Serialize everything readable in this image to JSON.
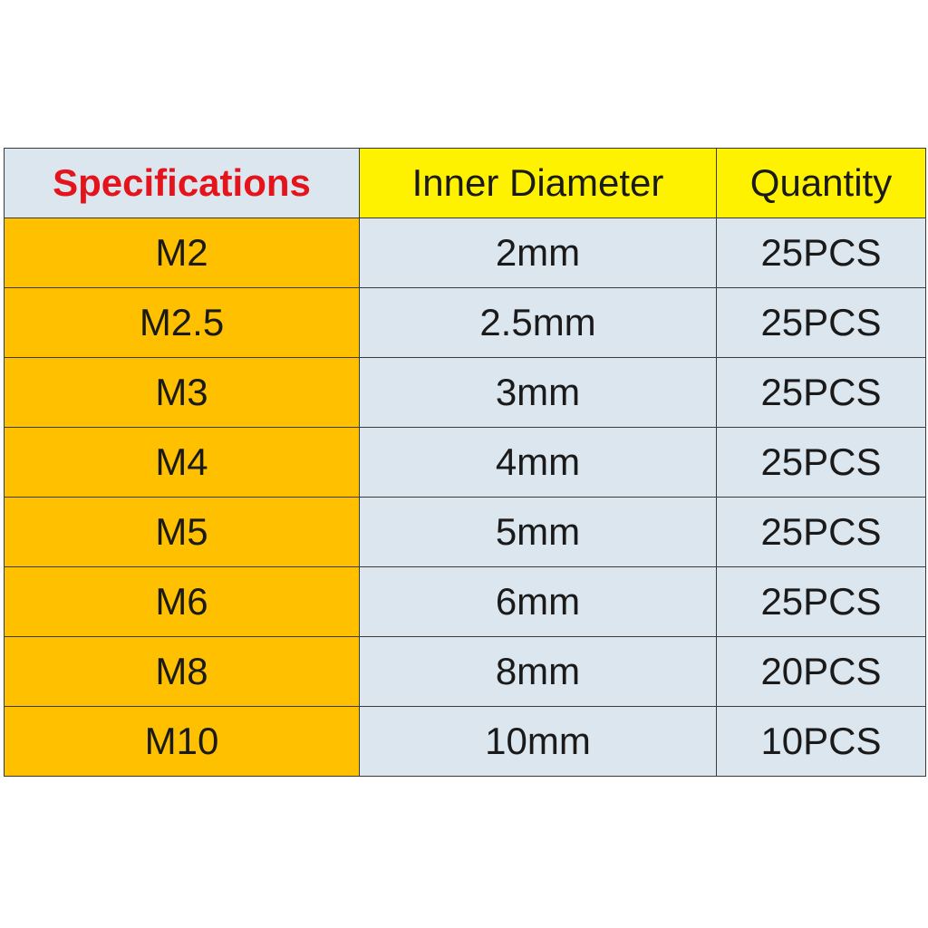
{
  "table": {
    "header": [
      "Specifications",
      "Inner Diameter",
      "Quantity"
    ],
    "rows": [
      [
        "M2",
        "2mm",
        "25PCS"
      ],
      [
        "M2.5",
        "2.5mm",
        "25PCS"
      ],
      [
        "M3",
        "3mm",
        "25PCS"
      ],
      [
        "M4",
        "4mm",
        "25PCS"
      ],
      [
        "M5",
        "5mm",
        "25PCS"
      ],
      [
        "M6",
        "6mm",
        "25PCS"
      ],
      [
        "M8",
        "8mm",
        "20PCS"
      ],
      [
        "M10",
        "10mm",
        "10PCS"
      ]
    ]
  }
}
